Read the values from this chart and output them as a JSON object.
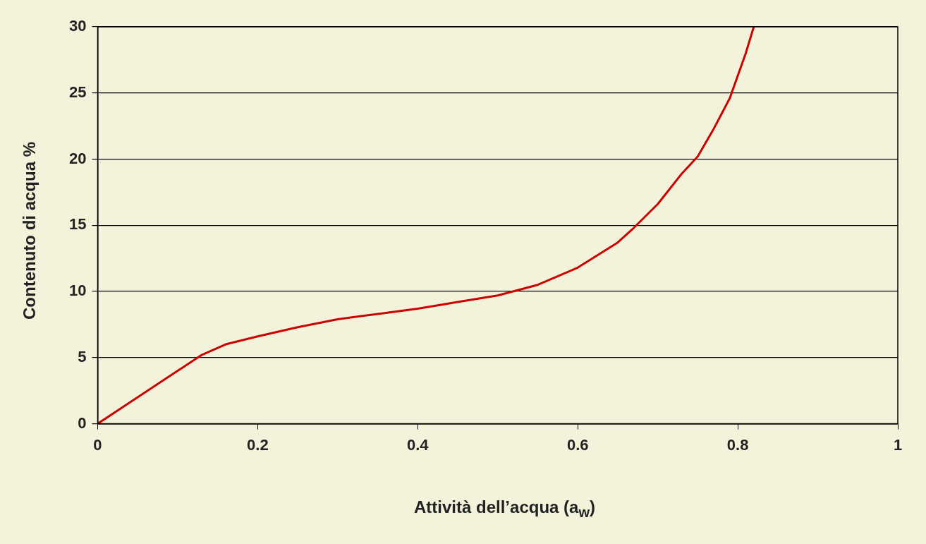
{
  "chart_data": {
    "type": "line",
    "xlabel": "Attività dell’acqua (a$_{w}$)",
    "ylabel": "Contenuto di acqua %",
    "x": [
      0,
      0.05,
      0.1,
      0.13,
      0.16,
      0.2,
      0.25,
      0.3,
      0.35,
      0.4,
      0.45,
      0.5,
      0.55,
      0.6,
      0.65,
      0.67,
      0.7,
      0.73,
      0.75,
      0.77,
      0.79,
      0.81,
      0.82
    ],
    "series": [
      {
        "color": "#cc0000",
        "values": [
          0,
          2,
          4,
          5.2,
          6,
          6.6,
          7.3,
          7.9,
          8.3,
          8.7,
          9.2,
          9.7,
          10.5,
          11.8,
          13.7,
          14.8,
          16.6,
          18.9,
          20.2,
          22.3,
          24.6,
          28,
          30
        ]
      }
    ],
    "xlim": [
      0,
      1
    ],
    "xticks": [
      0,
      0.2,
      0.4,
      0.6,
      0.8,
      1
    ],
    "ylim": [
      0,
      30
    ],
    "yticks": [
      0,
      5,
      10,
      15,
      20,
      25,
      30
    ],
    "grid": "y",
    "legend": false,
    "marker": "none",
    "line_style": "solid"
  }
}
